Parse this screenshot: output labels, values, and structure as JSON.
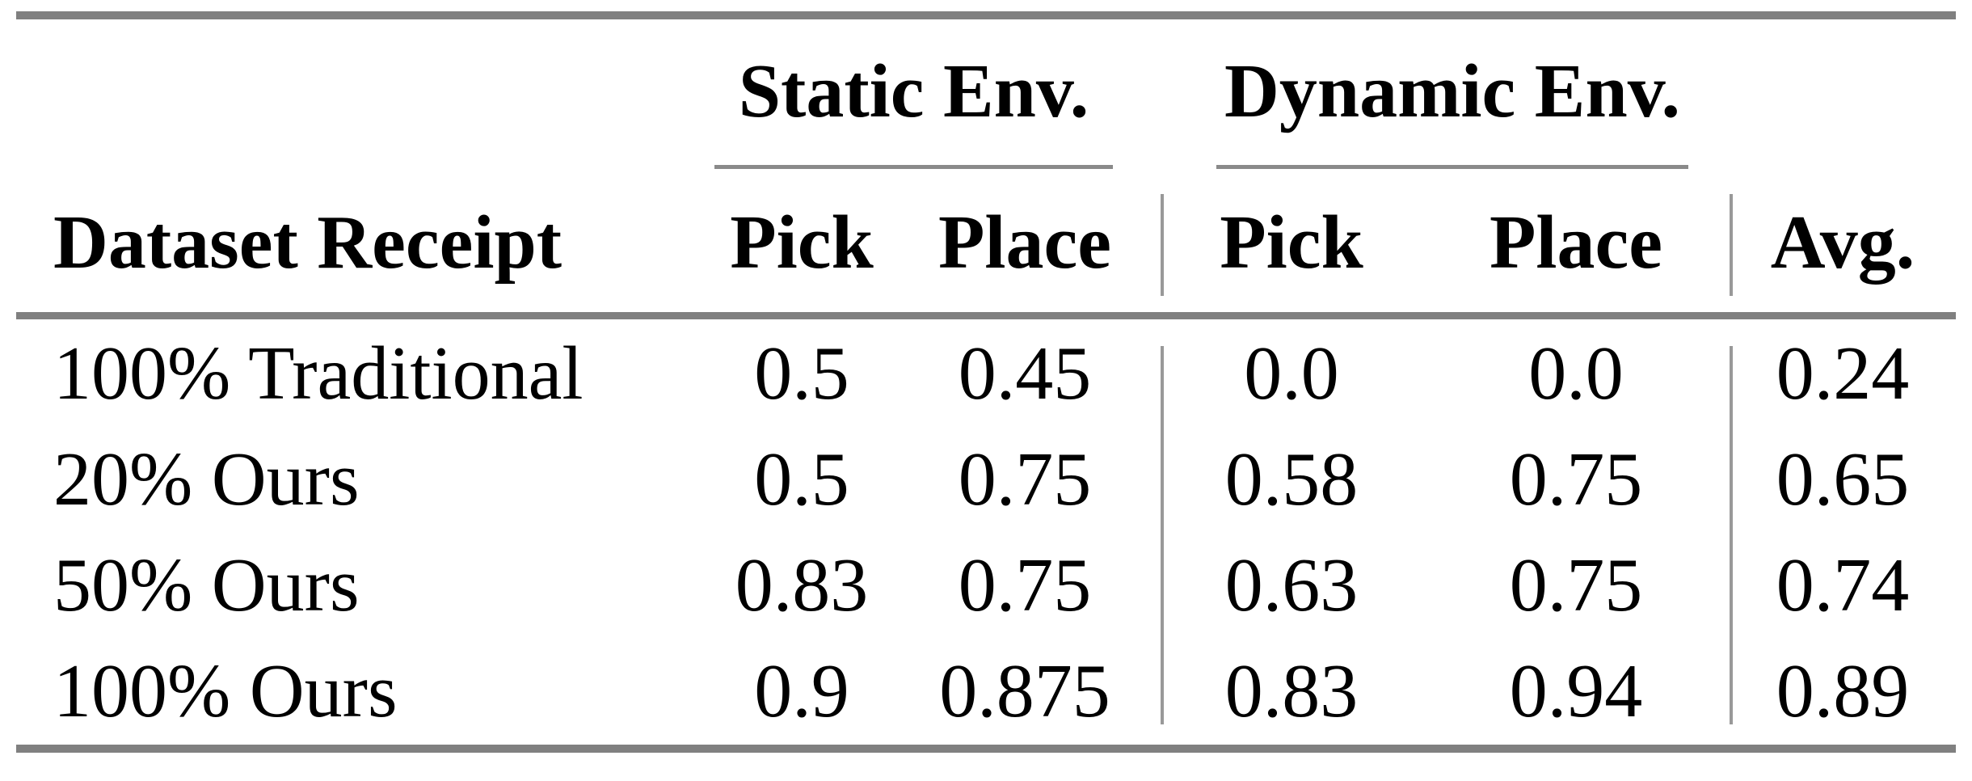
{
  "table": {
    "col_groups": {
      "static": {
        "label": "Static Env."
      },
      "dynamic": {
        "label": "Dynamic Env."
      }
    },
    "headers": {
      "dataset": "Dataset Receipt",
      "static_pick": "Pick",
      "static_place": "Place",
      "dynamic_pick": "Pick",
      "dynamic_place": "Place",
      "avg": "Avg."
    },
    "rows": [
      {
        "label": "100% Traditional",
        "static_pick": "0.5",
        "static_place": "0.45",
        "dynamic_pick": "0.0",
        "dynamic_place": "0.0",
        "avg": "0.24"
      },
      {
        "label": "20% Ours",
        "static_pick": "0.5",
        "static_place": "0.75",
        "dynamic_pick": "0.58",
        "dynamic_place": "0.75",
        "avg": "0.65"
      },
      {
        "label": "50% Ours",
        "static_pick": "0.83",
        "static_place": "0.75",
        "dynamic_pick": "0.63",
        "dynamic_place": "0.75",
        "avg": "0.74"
      },
      {
        "label": "100% Ours",
        "static_pick": "0.9",
        "static_place": "0.875",
        "dynamic_pick": "0.83",
        "dynamic_place": "0.94",
        "avg": "0.89"
      }
    ]
  },
  "colors": {
    "rule_gray": "#808080",
    "thin_line_gray": "#8a8a8a",
    "vline_gray": "#999999",
    "text": "#000000",
    "background": "#ffffff"
  }
}
